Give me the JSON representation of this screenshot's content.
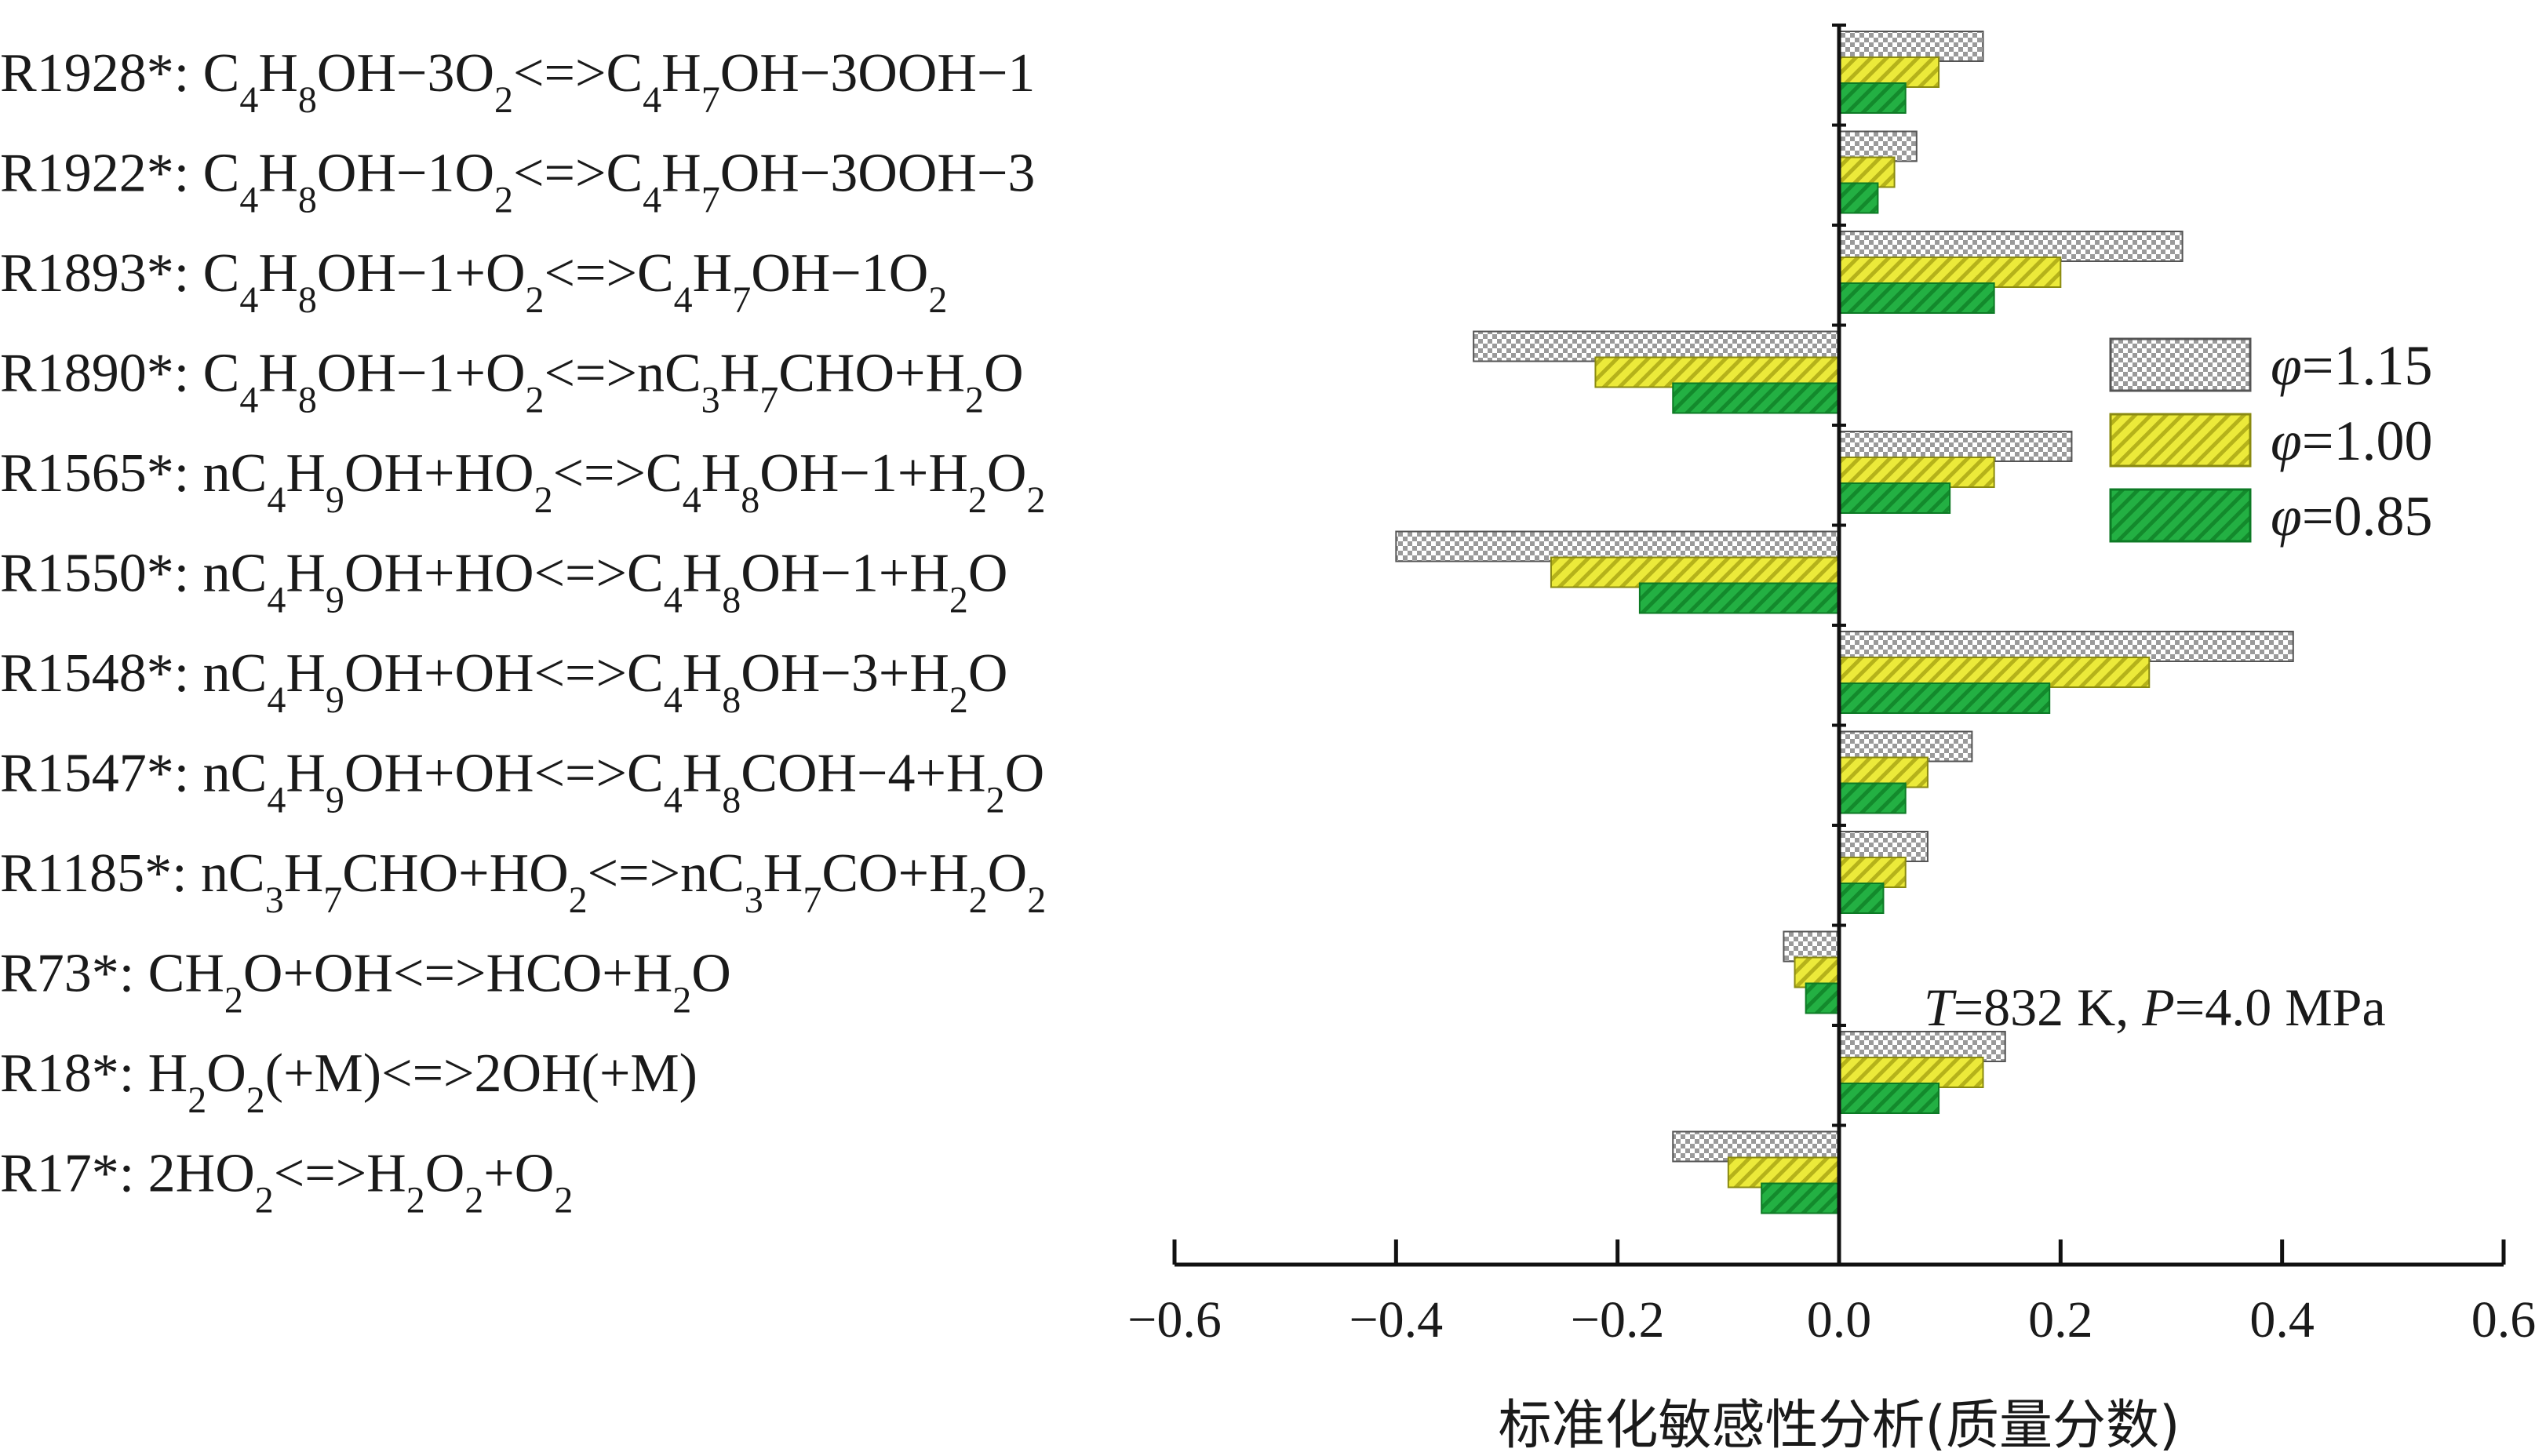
{
  "chart_data": {
    "type": "bar",
    "orientation": "horizontal",
    "categories": [
      [
        {
          "t": "R1928*: C"
        },
        {
          "t": "4",
          "sub": true
        },
        {
          "t": "H"
        },
        {
          "t": "8",
          "sub": true
        },
        {
          "t": "OH−3O"
        },
        {
          "t": "2",
          "sub": true
        },
        {
          "t": "<=>C"
        },
        {
          "t": "4",
          "sub": true
        },
        {
          "t": "H"
        },
        {
          "t": "7",
          "sub": true
        },
        {
          "t": "OH−3OOH−1"
        }
      ],
      [
        {
          "t": "R1922*: C"
        },
        {
          "t": "4",
          "sub": true
        },
        {
          "t": "H"
        },
        {
          "t": "8",
          "sub": true
        },
        {
          "t": "OH−1O"
        },
        {
          "t": "2",
          "sub": true
        },
        {
          "t": "<=>C"
        },
        {
          "t": "4",
          "sub": true
        },
        {
          "t": "H"
        },
        {
          "t": "7",
          "sub": true
        },
        {
          "t": "OH−3OOH−3"
        }
      ],
      [
        {
          "t": "R1893*: C"
        },
        {
          "t": "4",
          "sub": true
        },
        {
          "t": "H"
        },
        {
          "t": "8",
          "sub": true
        },
        {
          "t": "OH−1+O"
        },
        {
          "t": "2",
          "sub": true
        },
        {
          "t": "<=>C"
        },
        {
          "t": "4",
          "sub": true
        },
        {
          "t": "H"
        },
        {
          "t": "7",
          "sub": true
        },
        {
          "t": "OH−1O"
        },
        {
          "t": "2",
          "sub": true
        }
      ],
      [
        {
          "t": "R1890*: C"
        },
        {
          "t": "4",
          "sub": true
        },
        {
          "t": "H"
        },
        {
          "t": "8",
          "sub": true
        },
        {
          "t": "OH−1+O"
        },
        {
          "t": "2",
          "sub": true
        },
        {
          "t": "<=>nC"
        },
        {
          "t": "3",
          "sub": true
        },
        {
          "t": "H"
        },
        {
          "t": "7",
          "sub": true
        },
        {
          "t": "CHO+H"
        },
        {
          "t": "2",
          "sub": true
        },
        {
          "t": "O"
        }
      ],
      [
        {
          "t": "R1565*: nC"
        },
        {
          "t": "4",
          "sub": true
        },
        {
          "t": "H"
        },
        {
          "t": "9",
          "sub": true
        },
        {
          "t": "OH+HO"
        },
        {
          "t": "2",
          "sub": true
        },
        {
          "t": "<=>C"
        },
        {
          "t": "4",
          "sub": true
        },
        {
          "t": "H"
        },
        {
          "t": "8",
          "sub": true
        },
        {
          "t": "OH−1+H"
        },
        {
          "t": "2",
          "sub": true
        },
        {
          "t": "O"
        },
        {
          "t": "2",
          "sub": true
        }
      ],
      [
        {
          "t": "R1550*: nC"
        },
        {
          "t": "4",
          "sub": true
        },
        {
          "t": "H"
        },
        {
          "t": "9",
          "sub": true
        },
        {
          "t": "OH+HO<=>C"
        },
        {
          "t": "4",
          "sub": true
        },
        {
          "t": "H"
        },
        {
          "t": "8",
          "sub": true
        },
        {
          "t": "OH−1+H"
        },
        {
          "t": "2",
          "sub": true
        },
        {
          "t": "O"
        }
      ],
      [
        {
          "t": "R1548*: nC"
        },
        {
          "t": "4",
          "sub": true
        },
        {
          "t": "H"
        },
        {
          "t": "9",
          "sub": true
        },
        {
          "t": "OH+OH<=>C"
        },
        {
          "t": "4",
          "sub": true
        },
        {
          "t": "H"
        },
        {
          "t": "8",
          "sub": true
        },
        {
          "t": "OH−3+H"
        },
        {
          "t": "2",
          "sub": true
        },
        {
          "t": "O"
        }
      ],
      [
        {
          "t": "R1547*: nC"
        },
        {
          "t": "4",
          "sub": true
        },
        {
          "t": "H"
        },
        {
          "t": "9",
          "sub": true
        },
        {
          "t": "OH+OH<=>C"
        },
        {
          "t": "4",
          "sub": true
        },
        {
          "t": "H"
        },
        {
          "t": "8",
          "sub": true
        },
        {
          "t": "COH−4+H"
        },
        {
          "t": "2",
          "sub": true
        },
        {
          "t": "O"
        }
      ],
      [
        {
          "t": "R1185*: nC"
        },
        {
          "t": "3",
          "sub": true
        },
        {
          "t": "H"
        },
        {
          "t": "7",
          "sub": true
        },
        {
          "t": "CHO+HO"
        },
        {
          "t": "2",
          "sub": true
        },
        {
          "t": "<=>nC"
        },
        {
          "t": "3",
          "sub": true
        },
        {
          "t": "H"
        },
        {
          "t": "7",
          "sub": true
        },
        {
          "t": "CO+H"
        },
        {
          "t": "2",
          "sub": true
        },
        {
          "t": "O"
        },
        {
          "t": "2",
          "sub": true
        }
      ],
      [
        {
          "t": "R73*: CH"
        },
        {
          "t": "2",
          "sub": true
        },
        {
          "t": "O+OH<=>HCO+H"
        },
        {
          "t": "2",
          "sub": true
        },
        {
          "t": "O"
        }
      ],
      [
        {
          "t": "R18*: H"
        },
        {
          "t": "2",
          "sub": true
        },
        {
          "t": "O"
        },
        {
          "t": "2",
          "sub": true
        },
        {
          "t": "(+M)<=>2OH(+M)"
        }
      ],
      [
        {
          "t": "R17*: 2HO"
        },
        {
          "t": "2",
          "sub": true
        },
        {
          "t": "<=>H"
        },
        {
          "t": "2",
          "sub": true
        },
        {
          "t": "O"
        },
        {
          "t": "2",
          "sub": true
        },
        {
          "t": "+O"
        },
        {
          "t": "2",
          "sub": true
        }
      ]
    ],
    "series": [
      {
        "name": "φ=1.15",
        "symbol": "φ",
        "rest": "=1.15",
        "pattern": "checker",
        "color": "#b8b8b8",
        "values": [
          0.13,
          0.07,
          0.31,
          -0.33,
          0.21,
          -0.4,
          0.41,
          0.12,
          0.08,
          -0.05,
          0.15,
          -0.15
        ]
      },
      {
        "name": "φ=1.00",
        "symbol": "φ",
        "rest": "=1.00",
        "pattern": "hatch",
        "color": "#e8e430",
        "values": [
          0.09,
          0.05,
          0.2,
          -0.22,
          0.14,
          -0.26,
          0.28,
          0.08,
          0.06,
          -0.04,
          0.13,
          -0.1
        ]
      },
      {
        "name": "φ=0.85",
        "symbol": "φ",
        "rest": "=0.85",
        "pattern": "hatch",
        "color": "#1fa83c",
        "values": [
          0.06,
          0.035,
          0.14,
          -0.15,
          0.1,
          -0.18,
          0.19,
          0.06,
          0.04,
          -0.03,
          0.09,
          -0.07
        ]
      }
    ],
    "xlim": [
      -0.6,
      0.6
    ],
    "xticks": [
      -0.6,
      -0.4,
      -0.2,
      0.0,
      0.2,
      0.4,
      0.6
    ],
    "xtick_labels": [
      "−0.6",
      "−0.4",
      "−0.2",
      "0.0",
      "0.2",
      "0.4",
      "0.6"
    ],
    "xlabel": "标准化敏感性分析(质量分数)",
    "ylabel": "",
    "title": "",
    "annotation": [
      {
        "t": "T",
        "italic": true
      },
      {
        "t": "=832 K, "
      },
      {
        "t": "P",
        "italic": true
      },
      {
        "t": "=4.0 MPa"
      }
    ],
    "legend_position": "right"
  }
}
